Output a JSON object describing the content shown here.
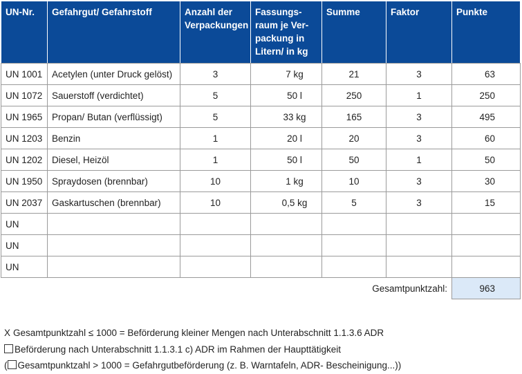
{
  "headers": [
    "UN-Nr.",
    "Gefahrgut/ Gefahrstoff",
    "Anzahl der Verpackungen",
    "Fassungs-raum je Ver-packung in Litern/ in kg",
    "Summe",
    "Faktor",
    "Punkte"
  ],
  "rows": [
    [
      "UN 1001",
      "Acetylen (unter Druck gelöst)",
      "3",
      "7 kg",
      "21",
      "3",
      "63"
    ],
    [
      "UN 1072",
      "Sauerstoff (verdichtet)",
      "5",
      "50 l",
      "250",
      "1",
      "250"
    ],
    [
      "UN 1965",
      "Propan/ Butan (verflüssigt)",
      "5",
      "33 kg",
      "165",
      "3",
      "495"
    ],
    [
      "UN 1203",
      "Benzin",
      "1",
      "20 l",
      "20",
      "3",
      "60"
    ],
    [
      "UN 1202",
      "Diesel, Heizöl",
      "1",
      "50 l",
      "50",
      "1",
      "50"
    ],
    [
      "UN 1950",
      "Spraydosen (brennbar)",
      "10",
      "1 kg",
      "10",
      "3",
      "30"
    ],
    [
      "UN 2037",
      "Gaskartuschen (brennbar)",
      "10",
      "0,5 kg",
      "5",
      "3",
      "15"
    ],
    [
      "UN",
      "",
      "",
      "",
      "",
      "",
      ""
    ],
    [
      "UN",
      "",
      "",
      "",
      "",
      "",
      ""
    ],
    [
      "UN",
      "",
      "",
      "",
      "",
      "",
      ""
    ]
  ],
  "total": {
    "label": "Gesamtpunktzahl:",
    "value": "963"
  },
  "notes": [
    {
      "mark": "X",
      "checked": true,
      "text": "Gesamtpunktzahl ≤ 1000 = Beförderung kleiner Mengen nach Unterabschnitt 1.1.3.6 ADR"
    },
    {
      "mark": "",
      "checked": false,
      "text": "Beförderung nach Unterabschnitt 1.1.3.1 c) ADR im Rahmen der Haupttätigkeit"
    },
    {
      "prefix": "(",
      "mark": "",
      "checked": false,
      "text": "Gesamtpunktzahl > 1000 = Gefahrgutbeförderung (z. B. Warntafeln, ADR- Bescheinigung...))"
    }
  ],
  "colors": {
    "header": "#0b4a98",
    "total_cell": "#dbe9f8"
  }
}
